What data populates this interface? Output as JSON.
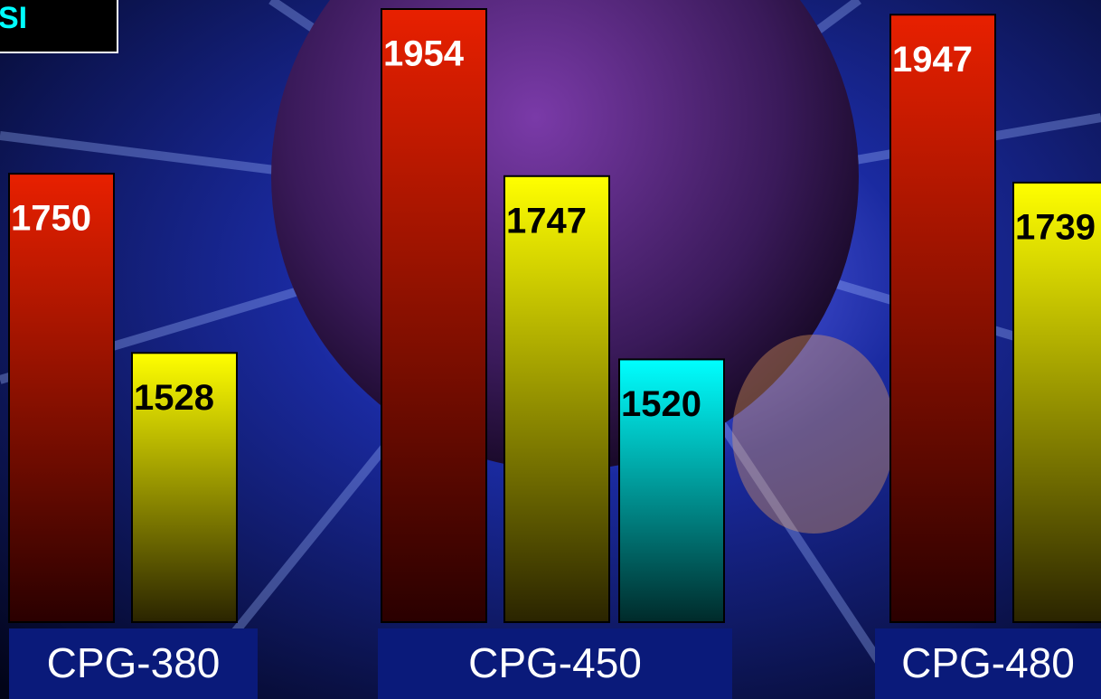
{
  "chart_data": {
    "type": "bar",
    "note": "SI",
    "categories": [
      "CPG-380",
      "CPG-450",
      "CPG-480"
    ],
    "series": [
      {
        "color": "#e82000",
        "values": [
          1750,
          1954,
          1947
        ]
      },
      {
        "color": "#ffff00",
        "values": [
          1528,
          1747,
          1739
        ]
      },
      {
        "color": "#00ffff",
        "values": [
          null,
          1520,
          null
        ]
      }
    ]
  }
}
